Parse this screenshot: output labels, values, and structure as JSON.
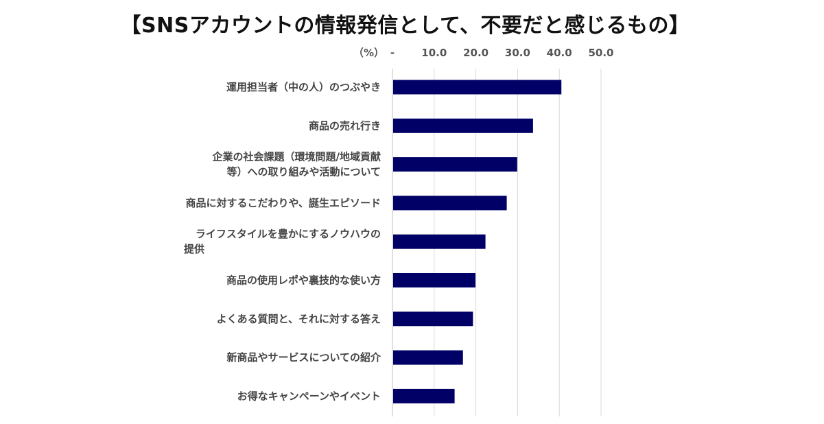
{
  "title": "【SNSアカウントの情報発信として、不要だと感じるもの】",
  "chart_data": {
    "type": "bar",
    "orientation": "horizontal",
    "title": "【SNSアカウントの情報発信として、不要だと感じるもの】",
    "axis_unit": "（%）",
    "xlim": [
      0,
      50
    ],
    "ticks": [
      "-",
      "10.0",
      "20.0",
      "30.0",
      "40.0",
      "50.0"
    ],
    "grid": true,
    "bar_color": "#000066",
    "categories": [
      [
        "運用担当者（中の人）のつぶやき"
      ],
      [
        "商品の売れ行き"
      ],
      [
        "企業の社会課題（環境問題/地域貢献",
        "等）への取り組みや活動について"
      ],
      [
        "商品に対するこだわりや、誕生エピソード"
      ],
      [
        "ライフスタイルを豊かにするノウハウの",
        "提供"
      ],
      [
        "商品の使用レポや裏技的な使い方"
      ],
      [
        "よくある質問と、それに対する答え"
      ],
      [
        "新商品やサービスについての紹介"
      ],
      [
        "お得なキャンペーンやイベント"
      ]
    ],
    "values": [
      40.5,
      33.7,
      29.9,
      27.4,
      22.3,
      19.9,
      19.3,
      16.9,
      14.9
    ]
  }
}
